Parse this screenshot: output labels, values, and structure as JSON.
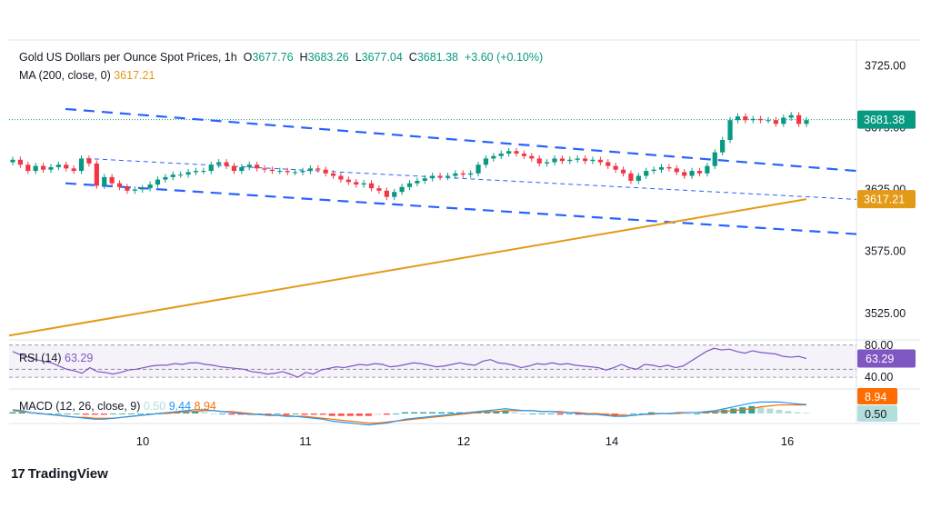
{
  "header": {
    "symbol": "Gold US Dollars per Ounce Spot Prices",
    "interval": "1h",
    "open_label": "O",
    "open": "3677.76",
    "high_label": "H",
    "high": "3683.26",
    "low_label": "L",
    "low": "3677.04",
    "close_label": "C",
    "close": "3681.38",
    "change": "+3.60 (+0.10%)"
  },
  "ma_legend": {
    "label": "MA (200, close, 0)",
    "value": "3617.21"
  },
  "rsi_legend": {
    "label": "RSI (14)",
    "value": "63.29"
  },
  "macd_legend": {
    "label": "MACD (12, 26, close, 9)",
    "hist": "0.50",
    "macd": "9.44",
    "signal": "8.94"
  },
  "branding": {
    "name": "TradingView"
  },
  "colors": {
    "up": "#089981",
    "down": "#f23645",
    "ma": "#e39a17",
    "channel": "#2962ff",
    "rsi": "#7e57c2",
    "macd": "#2196f3",
    "signal": "#ff6d00",
    "hist_up_strong": "#26a69a",
    "hist_up_weak": "#b2dfdb",
    "hist_down_strong": "#ff5252",
    "hist_down_weak": "#ffcdd2"
  },
  "chart_data": {
    "type": "candlestick",
    "title": "Gold US Dollars per Ounce Spot Prices, 1h",
    "x_tick_labels": [
      "10",
      "11",
      "12",
      "14",
      "16"
    ],
    "y_tick_labels": [
      "3725.00",
      "3675.00",
      "3625.00",
      "3575.00",
      "3525.00"
    ],
    "ylim": [
      3505,
      3745
    ],
    "price_badges": {
      "last": "3681.38",
      "ma": "3617.21"
    },
    "closes": [
      3649,
      3645,
      3640,
      3644,
      3641,
      3643,
      3645,
      3642,
      3640,
      3650,
      3646,
      3628,
      3635,
      3630,
      3627,
      3624,
      3625,
      3626,
      3629,
      3633,
      3635,
      3637,
      3637,
      3639,
      3640,
      3640,
      3645,
      3647,
      3644,
      3640,
      3643,
      3645,
      3642,
      3641,
      3640,
      3640,
      3639,
      3639,
      3640,
      3642,
      3641,
      3638,
      3636,
      3633,
      3631,
      3629,
      3630,
      3626,
      3624,
      3619,
      3623,
      3627,
      3630,
      3632,
      3634,
      3636,
      3635,
      3636,
      3638,
      3637,
      3638,
      3645,
      3650,
      3652,
      3654,
      3656,
      3654,
      3652,
      3650,
      3646,
      3647,
      3650,
      3648,
      3649,
      3650,
      3648,
      3649,
      3647,
      3644,
      3641,
      3638,
      3632,
      3636,
      3640,
      3641,
      3643,
      3642,
      3639,
      3636,
      3640,
      3638,
      3644,
      3655,
      3665,
      3681,
      3684,
      3681,
      3682,
      3681,
      3681,
      3678,
      3683,
      3685,
      3678,
      3681
    ],
    "ma200": {
      "name": "MA (200, close, 0)",
      "start": 3507,
      "end": 3617.21
    },
    "channel": {
      "upper_start": 3690,
      "upper_end": 3640,
      "lower_start": 3630,
      "lower_end": 3589,
      "mid_start": 3650,
      "mid_end": 3617
    },
    "rsi": {
      "name": "RSI (14)",
      "ylim": [
        30,
        82
      ],
      "levels": [
        80,
        50,
        40
      ],
      "level_labels": [
        "80.00",
        "40.00"
      ],
      "last": 63.29,
      "values": [
        72,
        68,
        65,
        62,
        60,
        58,
        54,
        50,
        48,
        45,
        52,
        47,
        46,
        44,
        46,
        49,
        50,
        52,
        54,
        55,
        55,
        57,
        56,
        58,
        58,
        56,
        55,
        53,
        52,
        51,
        50,
        47,
        46,
        44,
        45,
        47,
        44,
        40,
        46,
        44,
        49,
        51,
        53,
        52,
        54,
        56,
        55,
        57,
        56,
        53,
        54,
        56,
        58,
        57,
        55,
        53,
        54,
        56,
        58,
        56,
        55,
        60,
        62,
        58,
        57,
        55,
        52,
        54,
        57,
        56,
        58,
        56,
        57,
        55,
        54,
        53,
        52,
        49,
        52,
        56,
        52,
        50,
        56,
        55,
        53,
        55,
        52,
        54,
        60,
        66,
        72,
        76,
        74,
        75,
        72,
        70,
        73,
        71,
        70,
        69,
        66,
        65,
        66,
        63.29
      ]
    },
    "macd": {
      "name": "MACD (12, 26, close, 9)",
      "last_hist": 0.5,
      "last_macd": 9.44,
      "last_signal": 8.94,
      "macd": [
        4,
        3,
        1,
        0,
        -1,
        -2,
        -3,
        -4,
        -5,
        -6,
        -6,
        -5,
        -4,
        -3,
        -2,
        -1,
        0,
        1,
        2,
        3,
        4,
        4,
        3,
        2,
        1,
        0,
        -1,
        -1,
        -2,
        -2,
        -3,
        -3,
        -4,
        -5,
        -6,
        -8,
        -9,
        -10,
        -11,
        -12,
        -11,
        -10,
        -8,
        -6,
        -5,
        -4,
        -3,
        -2,
        -1,
        0,
        1,
        2,
        3,
        4,
        5,
        4,
        3,
        3,
        2,
        2,
        1,
        1,
        0,
        -1,
        -1,
        -2,
        -3,
        -3,
        -2,
        -1,
        0,
        0,
        0,
        1,
        1,
        1,
        2,
        3,
        5,
        7,
        9,
        11,
        12,
        12,
        12,
        11,
        10,
        9.44
      ],
      "signal": [
        3,
        2,
        1,
        0,
        -1,
        -2,
        -3,
        -4,
        -4,
        -5,
        -5,
        -5,
        -4,
        -3,
        -2,
        -1,
        0,
        0,
        1,
        2,
        2,
        3,
        3,
        2,
        2,
        1,
        0,
        -1,
        -1,
        -2,
        -2,
        -3,
        -3,
        -4,
        -5,
        -6,
        -7,
        -8,
        -9,
        -10,
        -10,
        -9,
        -8,
        -7,
        -6,
        -5,
        -4,
        -3,
        -2,
        -1,
        0,
        1,
        2,
        2,
        3,
        3,
        3,
        3,
        2,
        2,
        2,
        1,
        1,
        0,
        0,
        -1,
        -1,
        -2,
        -2,
        -1,
        -1,
        0,
        0,
        0,
        1,
        1,
        1,
        2,
        2,
        3,
        4,
        5,
        7,
        8,
        9,
        9,
        9,
        8.94
      ]
    }
  }
}
